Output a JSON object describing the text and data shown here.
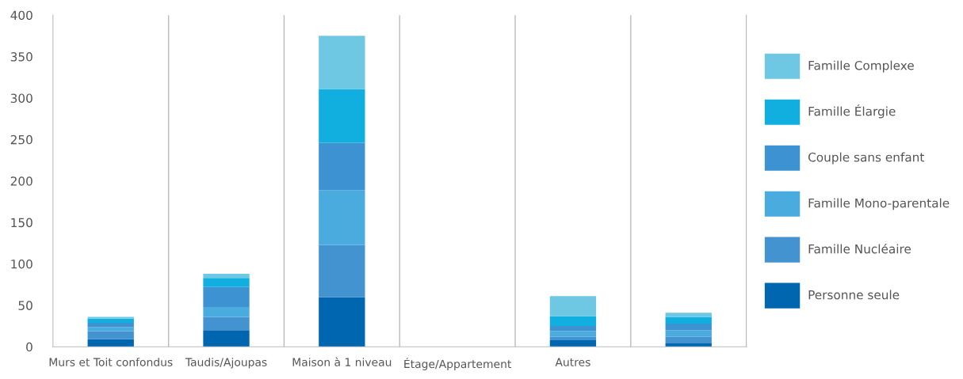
{
  "chart_data": {
    "type": "bar",
    "stacked": true,
    "categories": [
      "Murs et Toit confondus",
      "Taudis/Ajoupas",
      "Maison à 1 niveau",
      "Étage/Appartement",
      "Autres",
      null
    ],
    "series": [
      {
        "name": "Personne seule",
        "color": "#0066b0",
        "values": [
          9,
          20,
          60,
          0,
          8,
          4
        ]
      },
      {
        "name": "Famille Nucléaire",
        "color": "#4493d1",
        "values": [
          10,
          16,
          63,
          0,
          4,
          8
        ]
      },
      {
        "name": "Famille Mono-parentale",
        "color": "#4aabdf",
        "values": [
          5,
          12,
          66,
          0,
          7,
          8
        ]
      },
      {
        "name": "Couple sans enfant",
        "color": "#3d93d1",
        "values": [
          5,
          24,
          57,
          0,
          6,
          8
        ]
      },
      {
        "name": "Famille Élargie",
        "color": "#10afe0",
        "values": [
          5,
          11,
          65,
          0,
          12,
          8
        ]
      },
      {
        "name": "Famille Complexe",
        "color": "#6ec8e4",
        "values": [
          2,
          5,
          64,
          0,
          24,
          5
        ]
      }
    ],
    "ylim": [
      0,
      400
    ],
    "yticks": [
      0,
      50,
      100,
      150,
      200,
      250,
      300,
      350,
      400
    ],
    "grid": "x",
    "legend": "right"
  }
}
